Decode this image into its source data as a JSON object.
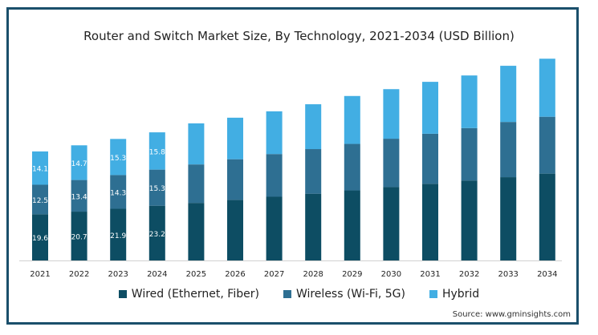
{
  "chart_data": {
    "type": "bar",
    "stacked": true,
    "title": "Router and Switch Market Size, By Technology, 2021-2034 (USD Billion)",
    "categories": [
      "2021",
      "2022",
      "2023",
      "2024",
      "2025",
      "2026",
      "2027",
      "2028",
      "2029",
      "2030",
      "2031",
      "2032",
      "2033",
      "2034"
    ],
    "series": [
      {
        "name": "Wired (Ethernet, Fiber)",
        "color": "#0d4d63",
        "values": [
          19.6,
          20.7,
          21.9,
          23.2,
          24.4,
          25.7,
          27.0,
          28.3,
          29.7,
          31.1,
          32.5,
          33.9,
          35.3,
          36.8
        ]
      },
      {
        "name": "Wireless (Wi-Fi, 5G)",
        "color": "#2e6f92",
        "values": [
          12.5,
          13.4,
          14.3,
          15.3,
          16.3,
          17.2,
          18.1,
          18.9,
          19.7,
          20.5,
          21.2,
          22.2,
          23.4,
          24.1
        ]
      },
      {
        "name": "Hybrid",
        "color": "#42aee3",
        "values": [
          14.1,
          14.7,
          15.3,
          15.8,
          17.4,
          17.6,
          18.1,
          19.0,
          20.3,
          21.0,
          22.0,
          22.3,
          23.8,
          24.6
        ]
      }
    ],
    "data_labels": {
      "count": 4,
      "Wired (Ethernet, Fiber)": [
        "19.6",
        "20.7",
        "21.9",
        "23.2"
      ],
      "Wireless (Wi-Fi, 5G)": [
        "12.5",
        "13.4",
        "14.3",
        "15.3"
      ],
      "Hybrid": [
        "14.1",
        "14.7",
        "15.3",
        "15.8"
      ]
    },
    "ylim": [
      0,
      90
    ],
    "grid": false,
    "legend_position": "bottom"
  },
  "source": "Source: www.gminsights.com"
}
